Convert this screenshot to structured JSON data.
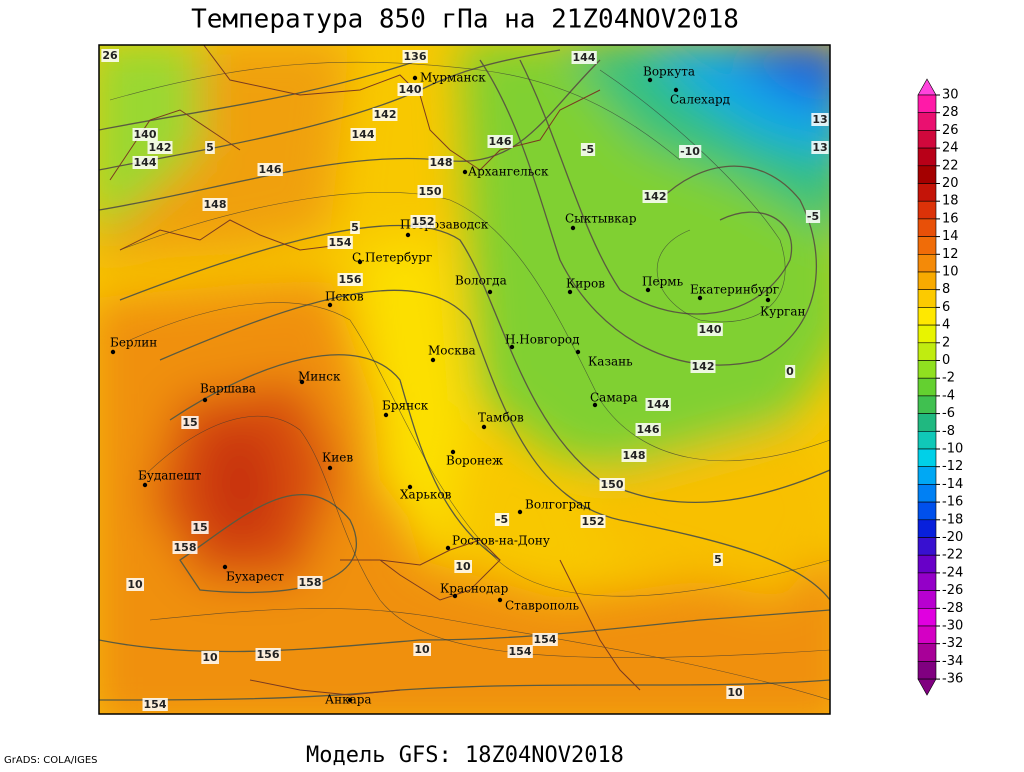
{
  "title": "Температура 850 гПа на 21Z04NOV2018",
  "footer": "Модель GFS: 18Z04NOV2018",
  "credit": "GrADS: COLA/IGES",
  "colorbar": {
    "levels": [
      30,
      28,
      26,
      24,
      22,
      20,
      18,
      16,
      14,
      12,
      10,
      8,
      6,
      4,
      2,
      0,
      -2,
      -4,
      -6,
      -8,
      -10,
      -12,
      -14,
      -16,
      -18,
      -20,
      -22,
      -24,
      -26,
      -28,
      -30,
      -32,
      -34,
      -36
    ],
    "colors": [
      "#ff44dd",
      "#ff1aa8",
      "#ea1070",
      "#d0083c",
      "#b80018",
      "#a40000",
      "#c41408",
      "#dc3208",
      "#e85008",
      "#f06c08",
      "#f48a08",
      "#f8aa00",
      "#fcca00",
      "#ffe800",
      "#e8f400",
      "#c0ec10",
      "#90e020",
      "#64d030",
      "#40c050",
      "#20b880",
      "#10c8b8",
      "#00d0e8",
      "#00a8f4",
      "#0080f4",
      "#0050ec",
      "#0820dc",
      "#3810d0",
      "#6800c8",
      "#9400c8",
      "#b800d0",
      "#e000e0",
      "#d400c4",
      "#a80098",
      "#800080"
    ]
  },
  "cities": [
    "Мурманск",
    "Архангельск",
    "Воркута",
    "Салехард",
    "Сыктывкар",
    "Петрозаводск",
    "С.Петербург",
    "Вологда",
    "Киров",
    "Пермь",
    "Екатеринбург",
    "Курган",
    "Псков",
    "Н.Новгород",
    "Казань",
    "Москва",
    "Минск",
    "Варшава",
    "Берлин",
    "Самара",
    "Брянск",
    "Тамбов",
    "Воронеж",
    "Киев",
    "Будапешт",
    "Харьков",
    "Волгоград",
    "Ростов-на-Дону",
    "Бухарест",
    "Краснодар",
    "Ставрополь",
    "Анкара"
  ],
  "contour_labels": [
    136,
    140,
    142,
    144,
    146,
    148,
    150,
    152,
    154,
    156,
    158,
    158,
    156,
    154,
    154,
    154,
    152,
    150,
    148,
    146,
    144,
    142,
    140,
    142,
    146,
    144,
    140,
    142,
    144,
    148,
    15,
    15,
    10,
    10,
    10,
    10,
    10,
    5,
    5,
    -5,
    -10,
    -5,
    -5,
    5,
    13,
    13,
    0,
    26
  ]
}
